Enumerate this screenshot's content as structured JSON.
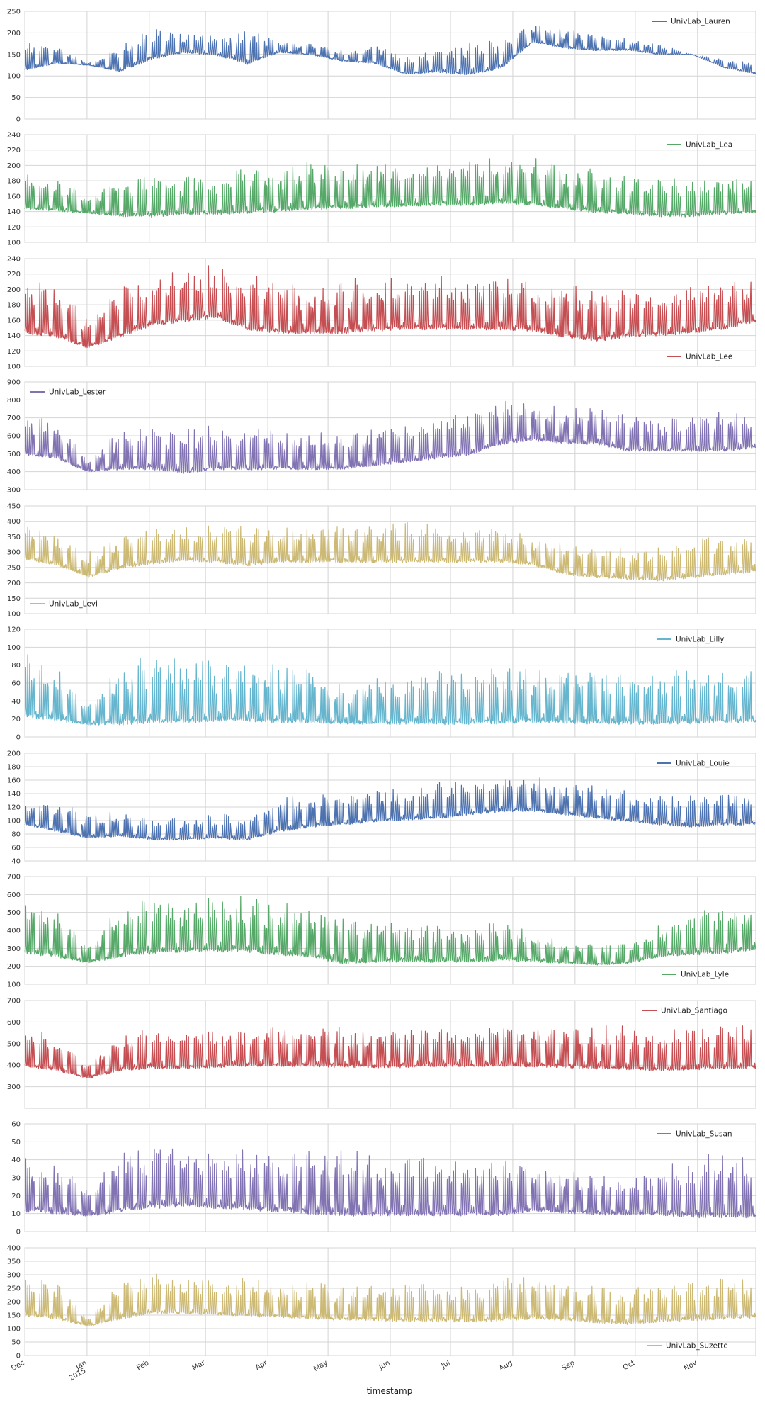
{
  "chart_data": {
    "type": "line",
    "xlabel": "timestamp",
    "x_ticks": [
      {
        "label": "Dec",
        "date": "2014-12-01"
      },
      {
        "label": "Jan",
        "sublabel": "2015",
        "date": "2015-01-01"
      },
      {
        "label": "Feb",
        "date": "2015-02-01"
      },
      {
        "label": "Mar",
        "date": "2015-03-01"
      },
      {
        "label": "Apr",
        "date": "2015-04-01"
      },
      {
        "label": "May",
        "date": "2015-05-01"
      },
      {
        "label": "Jun",
        "date": "2015-06-01"
      },
      {
        "label": "Jul",
        "date": "2015-07-01"
      },
      {
        "label": "Aug",
        "date": "2015-08-01"
      },
      {
        "label": "Sep",
        "date": "2015-09-01"
      },
      {
        "label": "Oct",
        "date": "2015-10-01"
      },
      {
        "label": "Nov",
        "date": "2015-11-01"
      }
    ],
    "x_range": [
      "2014-12-01",
      "2015-11-30"
    ],
    "grid": true,
    "series": [
      {
        "name": "UnivLab_Lauren",
        "color": "#4c72b0",
        "ylim": [
          0,
          250
        ],
        "yticks": [
          0,
          50,
          100,
          150,
          200,
          250
        ],
        "legend": "top-right",
        "base": [
          115,
          130,
          125,
          112,
          140,
          155,
          150,
          130,
          155,
          150,
          135,
          130,
          105,
          110,
          105,
          120,
          180,
          165,
          160,
          160,
          150,
          150,
          120,
          105
        ],
        "peak": [
          185,
          170,
          130,
          175,
          210,
          205,
          195,
          210,
          185,
          175,
          160,
          175,
          150,
          160,
          180,
          185,
          220,
          210,
          200,
          185,
          175,
          150,
          140,
          140
        ]
      },
      {
        "name": "UnivLab_Lea",
        "color": "#55a868",
        "ylim": [
          100,
          240
        ],
        "yticks": [
          100,
          120,
          140,
          160,
          180,
          200,
          220,
          240
        ],
        "legend": "top-right",
        "base": [
          145,
          142,
          138,
          135,
          135,
          138,
          138,
          140,
          142,
          145,
          145,
          148,
          148,
          150,
          150,
          152,
          150,
          145,
          140,
          138,
          135,
          135,
          138,
          140
        ],
        "peak": [
          200,
          185,
          160,
          185,
          195,
          190,
          195,
          205,
          205,
          205,
          200,
          210,
          200,
          205,
          210,
          220,
          215,
          200,
          195,
          190,
          185,
          185,
          190,
          195
        ]
      },
      {
        "name": "UnivLab_Lee",
        "color": "#c44e52",
        "ylim": [
          100,
          240
        ],
        "yticks": [
          100,
          120,
          140,
          160,
          180,
          200,
          220,
          240
        ],
        "legend": "bottom-right",
        "base": [
          145,
          140,
          125,
          140,
          155,
          160,
          165,
          150,
          145,
          145,
          145,
          148,
          150,
          150,
          150,
          150,
          148,
          140,
          135,
          140,
          142,
          145,
          150,
          160
        ],
        "peak": [
          215,
          210,
          165,
          205,
          215,
          225,
          230,
          220,
          210,
          210,
          215,
          215,
          215,
          220,
          220,
          220,
          215,
          210,
          205,
          205,
          205,
          210,
          215,
          220
        ]
      },
      {
        "name": "UnivLab_Lester",
        "color": "#8172b2",
        "ylim": [
          300,
          900
        ],
        "yticks": [
          300,
          400,
          500,
          600,
          700,
          800,
          900
        ],
        "legend": "top-left",
        "base": [
          500,
          480,
          400,
          420,
          420,
          400,
          420,
          420,
          420,
          420,
          420,
          440,
          460,
          480,
          500,
          560,
          580,
          560,
          560,
          520,
          520,
          520,
          520,
          540
        ],
        "peak": [
          720,
          700,
          480,
          640,
          660,
          640,
          660,
          660,
          640,
          640,
          620,
          660,
          680,
          720,
          760,
          820,
          800,
          760,
          760,
          720,
          700,
          720,
          740,
          740
        ]
      },
      {
        "name": "UnivLab_Levi",
        "color": "#ccb974",
        "ylim": [
          100,
          450
        ],
        "yticks": [
          100,
          150,
          200,
          250,
          300,
          350,
          400,
          450
        ],
        "legend": "bottom-left",
        "base": [
          280,
          260,
          220,
          250,
          265,
          275,
          270,
          260,
          270,
          270,
          270,
          270,
          270,
          270,
          270,
          270,
          260,
          230,
          220,
          215,
          210,
          220,
          230,
          240
        ],
        "peak": [
          400,
          360,
          300,
          360,
          390,
          390,
          390,
          395,
          400,
          395,
          395,
          400,
          400,
          400,
          390,
          390,
          350,
          330,
          320,
          320,
          320,
          340,
          360,
          380
        ]
      },
      {
        "name": "UnivLab_Lilly",
        "color": "#64b5cd",
        "ylim": [
          0,
          120
        ],
        "yticks": [
          0,
          20,
          40,
          60,
          80,
          100,
          120
        ],
        "legend": "top-right",
        "base": [
          25,
          20,
          14,
          16,
          18,
          18,
          20,
          20,
          18,
          18,
          16,
          16,
          16,
          16,
          16,
          17,
          18,
          17,
          16,
          16,
          16,
          17,
          18,
          18
        ],
        "peak": [
          95,
          80,
          35,
          85,
          90,
          92,
          90,
          88,
          85,
          80,
          60,
          70,
          72,
          75,
          78,
          80,
          82,
          78,
          75,
          72,
          75,
          80,
          82,
          82
        ]
      },
      {
        "name": "UnivLab_Louie",
        "color": "#4c72b0",
        "ylim": [
          40,
          200
        ],
        "yticks": [
          40,
          60,
          80,
          100,
          120,
          140,
          160,
          180,
          200
        ],
        "legend": "top-right",
        "base": [
          95,
          85,
          75,
          78,
          72,
          72,
          75,
          72,
          85,
          92,
          95,
          100,
          102,
          105,
          110,
          115,
          115,
          110,
          105,
          100,
          95,
          92,
          95,
          95
        ],
        "peak": [
          130,
          130,
          110,
          115,
          105,
          105,
          110,
          110,
          135,
          145,
          145,
          150,
          150,
          160,
          165,
          165,
          165,
          160,
          155,
          145,
          140,
          140,
          145,
          145
        ]
      },
      {
        "name": "UnivLab_Lyle",
        "color": "#55a868",
        "ylim": [
          100,
          700
        ],
        "yticks": [
          100,
          200,
          300,
          400,
          500,
          600,
          700
        ],
        "legend": "bottom-right",
        "base": [
          280,
          260,
          220,
          260,
          280,
          290,
          290,
          290,
          270,
          260,
          220,
          230,
          230,
          230,
          230,
          240,
          230,
          220,
          210,
          220,
          260,
          270,
          280,
          300
        ],
        "peak": [
          600,
          520,
          320,
          540,
          600,
          610,
          600,
          590,
          560,
          540,
          480,
          470,
          450,
          440,
          440,
          450,
          400,
          340,
          320,
          340,
          450,
          500,
          540,
          580
        ]
      },
      {
        "name": "UnivLab_Santiago",
        "color": "#c44e52",
        "ylim": [
          200,
          700
        ],
        "yticks": [
          300,
          400,
          500,
          600,
          700
        ],
        "legend": "top-right",
        "base": [
          400,
          380,
          340,
          380,
          390,
          390,
          395,
          400,
          400,
          400,
          395,
          395,
          395,
          400,
          400,
          400,
          400,
          395,
          390,
          385,
          380,
          385,
          390,
          390
        ],
        "peak": [
          570,
          540,
          410,
          570,
          580,
          575,
          575,
          580,
          590,
          585,
          580,
          580,
          580,
          585,
          590,
          595,
          600,
          600,
          590,
          580,
          575,
          580,
          590,
          590
        ]
      },
      {
        "name": "UnivLab_Susan",
        "color": "#8172b2",
        "ylim": [
          0,
          60
        ],
        "yticks": [
          0,
          10,
          20,
          30,
          40,
          50,
          60
        ],
        "legend": "top-right",
        "base": [
          12,
          11,
          9,
          12,
          14,
          15,
          14,
          13,
          12,
          11,
          10,
          10,
          10,
          10,
          10,
          10,
          12,
          11,
          10,
          10,
          10,
          9,
          9,
          9
        ],
        "peak": [
          45,
          40,
          25,
          45,
          50,
          48,
          45,
          45,
          48,
          45,
          45,
          45,
          42,
          42,
          42,
          40,
          38,
          34,
          32,
          30,
          38,
          42,
          45,
          45
        ]
      },
      {
        "name": "UnivLab_Suzette",
        "color": "#ccb974",
        "ylim": [
          0,
          400
        ],
        "yticks": [
          0,
          50,
          100,
          150,
          200,
          250,
          300,
          350,
          400
        ],
        "legend": "bottom-right",
        "base": [
          150,
          140,
          110,
          140,
          160,
          160,
          155,
          150,
          145,
          140,
          135,
          135,
          130,
          130,
          130,
          135,
          140,
          135,
          125,
          120,
          130,
          135,
          140,
          145
        ],
        "peak": [
          300,
          280,
          150,
          280,
          310,
          300,
          290,
          290,
          280,
          270,
          260,
          270,
          270,
          270,
          280,
          290,
          290,
          280,
          260,
          250,
          270,
          280,
          290,
          300
        ]
      }
    ]
  }
}
